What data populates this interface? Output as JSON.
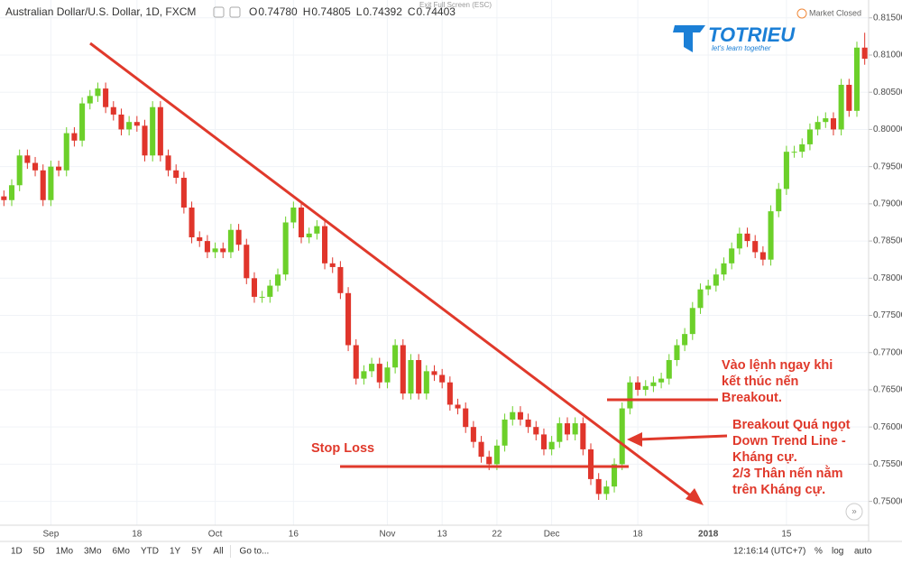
{
  "header": {
    "symbol": "Australian Dollar/U.S. Dollar, 1D, FXCM",
    "ohlc": [
      {
        "key": "O",
        "value": "0.74780"
      },
      {
        "key": "H",
        "value": "0.74805"
      },
      {
        "key": "L",
        "value": "0.74392"
      },
      {
        "key": "C",
        "value": "0.74403"
      }
    ],
    "exit_fullscreen": "Exit Full Screen (ESC)",
    "status": "Market Closed"
  },
  "logo": {
    "name": "TOTRIEU",
    "tagline": "let's learn together"
  },
  "chart_data": {
    "type": "candlestick",
    "up_color": "#6cd02a",
    "down_color": "#e0352b",
    "grid": true,
    "categories": [
      null,
      null,
      null,
      null,
      null,
      null,
      "Sep",
      null,
      null,
      null,
      null,
      null,
      null,
      null,
      null,
      null,
      null,
      "18",
      null,
      null,
      null,
      null,
      null,
      null,
      null,
      null,
      null,
      "Oct",
      null,
      null,
      null,
      null,
      null,
      null,
      null,
      null,
      null,
      "16",
      null,
      null,
      null,
      null,
      null,
      null,
      null,
      null,
      null,
      null,
      null,
      "Nov",
      null,
      null,
      null,
      null,
      null,
      null,
      "13",
      null,
      null,
      null,
      null,
      null,
      null,
      "22",
      null,
      null,
      null,
      null,
      null,
      null,
      "Dec",
      null,
      null,
      null,
      null,
      null,
      null,
      null,
      null,
      null,
      null,
      "18",
      null,
      null,
      null,
      null,
      null,
      null,
      null,
      null,
      "2018",
      null,
      null,
      null,
      null,
      null,
      null,
      null,
      null,
      null,
      "15",
      null,
      null,
      null,
      null,
      null,
      null,
      null,
      null,
      null,
      null
    ],
    "open": [
      0.791,
      0.7905,
      0.7925,
      0.7965,
      0.7955,
      0.7945,
      0.7905,
      0.795,
      0.7945,
      0.7995,
      0.7985,
      0.8035,
      0.8045,
      0.8055,
      0.803,
      0.802,
      0.8,
      0.801,
      0.8005,
      0.7965,
      0.803,
      0.7965,
      0.7945,
      0.7935,
      0.7895,
      0.7855,
      0.785,
      0.7835,
      0.784,
      0.7835,
      0.7865,
      0.7845,
      0.78,
      0.7775,
      0.7775,
      0.779,
      0.7805,
      0.7875,
      0.7895,
      0.7855,
      0.786,
      0.787,
      0.782,
      0.7815,
      0.778,
      0.771,
      0.7665,
      0.7675,
      0.7685,
      0.766,
      0.768,
      0.771,
      0.7645,
      0.769,
      0.7645,
      0.7675,
      0.767,
      0.766,
      0.763,
      0.7625,
      0.76,
      0.758,
      0.756,
      0.755,
      0.7575,
      0.761,
      0.762,
      0.761,
      0.76,
      0.759,
      0.757,
      0.758,
      0.7605,
      0.759,
      0.7605,
      0.757,
      0.753,
      0.751,
      0.752,
      0.755,
      0.7625,
      0.766,
      0.765,
      0.7655,
      0.766,
      0.7665,
      0.769,
      0.771,
      0.7725,
      0.776,
      0.7785,
      0.779,
      0.7805,
      0.782,
      0.784,
      0.786,
      0.785,
      0.7835,
      0.7825,
      0.789,
      0.792,
      0.797,
      0.797,
      0.798,
      0.8,
      0.801,
      0.8015,
      0.8,
      0.806,
      0.8025,
      0.811
    ],
    "high": [
      0.7918,
      0.7933,
      0.7973,
      0.7973,
      0.7963,
      0.7953,
      0.7958,
      0.7958,
      0.8003,
      0.8003,
      0.8043,
      0.8053,
      0.8063,
      0.8063,
      0.8038,
      0.8028,
      0.8018,
      0.8018,
      0.8013,
      0.8038,
      0.8038,
      0.7973,
      0.7953,
      0.7943,
      0.7903,
      0.7863,
      0.7858,
      0.7848,
      0.7848,
      0.7873,
      0.7873,
      0.7853,
      0.7808,
      0.7783,
      0.7798,
      0.7813,
      0.7883,
      0.7903,
      0.7903,
      0.7868,
      0.7878,
      0.7878,
      0.7828,
      0.7823,
      0.7788,
      0.7718,
      0.7683,
      0.7693,
      0.7693,
      0.7688,
      0.7718,
      0.7718,
      0.7698,
      0.7698,
      0.7683,
      0.7683,
      0.7678,
      0.7668,
      0.7638,
      0.7633,
      0.7608,
      0.7588,
      0.7568,
      0.7583,
      0.7618,
      0.7628,
      0.7628,
      0.7618,
      0.7608,
      0.7598,
      0.7588,
      0.7613,
      0.7613,
      0.7613,
      0.7613,
      0.7578,
      0.7538,
      0.7528,
      0.7558,
      0.7633,
      0.7668,
      0.7668,
      0.7663,
      0.7668,
      0.7673,
      0.7698,
      0.7718,
      0.7733,
      0.7768,
      0.7793,
      0.7798,
      0.7813,
      0.7828,
      0.7848,
      0.7868,
      0.7868,
      0.7858,
      0.7843,
      0.7898,
      0.7928,
      0.7978,
      0.7978,
      0.7988,
      0.8008,
      0.8018,
      0.8023,
      0.8023,
      0.8068,
      0.8068,
      0.8118,
      0.813
    ],
    "low": [
      0.7897,
      0.7897,
      0.7917,
      0.7947,
      0.7937,
      0.7897,
      0.7897,
      0.7937,
      0.7937,
      0.7977,
      0.7977,
      0.8027,
      0.8037,
      0.8022,
      0.8012,
      0.7992,
      0.7992,
      0.7997,
      0.7957,
      0.7957,
      0.7957,
      0.7937,
      0.7927,
      0.7887,
      0.7847,
      0.7842,
      0.7827,
      0.7827,
      0.7827,
      0.7827,
      0.7837,
      0.7792,
      0.7767,
      0.7767,
      0.7767,
      0.7782,
      0.7797,
      0.7867,
      0.7847,
      0.7847,
      0.7852,
      0.7812,
      0.7807,
      0.7772,
      0.7702,
      0.7657,
      0.7657,
      0.7667,
      0.7652,
      0.7652,
      0.7672,
      0.7637,
      0.7637,
      0.7637,
      0.7637,
      0.7662,
      0.7652,
      0.7622,
      0.7617,
      0.7592,
      0.7572,
      0.7552,
      0.7542,
      0.7542,
      0.7567,
      0.7602,
      0.7602,
      0.7592,
      0.7582,
      0.7562,
      0.7562,
      0.7572,
      0.7582,
      0.7582,
      0.7562,
      0.7522,
      0.7502,
      0.7502,
      0.7512,
      0.7542,
      0.7617,
      0.7642,
      0.7642,
      0.7647,
      0.7652,
      0.7657,
      0.7682,
      0.7702,
      0.7717,
      0.7752,
      0.7777,
      0.7782,
      0.7797,
      0.7812,
      0.7832,
      0.7842,
      0.7827,
      0.7817,
      0.7817,
      0.7882,
      0.7912,
      0.7962,
      0.7962,
      0.7972,
      0.7992,
      0.8002,
      0.7992,
      0.7992,
      0.8017,
      0.8017,
      0.8087
    ],
    "close": [
      0.7905,
      0.7925,
      0.7965,
      0.7955,
      0.7945,
      0.7905,
      0.795,
      0.7945,
      0.7995,
      0.7985,
      0.8035,
      0.8045,
      0.8055,
      0.803,
      0.802,
      0.8,
      0.801,
      0.8005,
      0.7965,
      0.803,
      0.7965,
      0.7945,
      0.7935,
      0.7895,
      0.7855,
      0.785,
      0.7835,
      0.784,
      0.7835,
      0.7865,
      0.7845,
      0.78,
      0.7775,
      0.7775,
      0.779,
      0.7805,
      0.7875,
      0.7895,
      0.7855,
      0.786,
      0.787,
      0.782,
      0.7815,
      0.778,
      0.771,
      0.7665,
      0.7675,
      0.7685,
      0.766,
      0.768,
      0.771,
      0.7645,
      0.769,
      0.7645,
      0.7675,
      0.767,
      0.766,
      0.763,
      0.7625,
      0.76,
      0.758,
      0.756,
      0.755,
      0.7575,
      0.761,
      0.762,
      0.761,
      0.76,
      0.759,
      0.757,
      0.758,
      0.7605,
      0.759,
      0.7605,
      0.757,
      0.753,
      0.751,
      0.752,
      0.755,
      0.7625,
      0.766,
      0.765,
      0.7655,
      0.766,
      0.7665,
      0.769,
      0.771,
      0.7725,
      0.776,
      0.7785,
      0.779,
      0.7805,
      0.782,
      0.784,
      0.786,
      0.785,
      0.7835,
      0.7825,
      0.789,
      0.792,
      0.797,
      0.797,
      0.798,
      0.8,
      0.801,
      0.8015,
      0.8,
      0.806,
      0.8025,
      0.811,
      0.8095
    ],
    "ylim": [
      0.7468,
      0.8174
    ],
    "yticks": [
      {
        "value": 0.75,
        "label": "0.75000"
      },
      {
        "value": 0.755,
        "label": "0.75500"
      },
      {
        "value": 0.76,
        "label": "0.76000"
      },
      {
        "value": 0.765,
        "label": "0.76500"
      },
      {
        "value": 0.77,
        "label": "0.77000"
      },
      {
        "value": 0.775,
        "label": "0.77500"
      },
      {
        "value": 0.78,
        "label": "0.78000"
      },
      {
        "value": 0.785,
        "label": "0.78500"
      },
      {
        "value": 0.79,
        "label": "0.79000"
      },
      {
        "value": 0.795,
        "label": "0.79500"
      },
      {
        "value": 0.8,
        "label": "0.80000"
      },
      {
        "value": 0.805,
        "label": "0.80500"
      },
      {
        "value": 0.81,
        "label": "0.81000"
      },
      {
        "value": 0.815,
        "label": "0.81500"
      }
    ],
    "annotations": {
      "stop_loss": "Stop Loss",
      "entry": [
        "Vào lệnh ngay khi",
        "kết thúc nến",
        "Breakout."
      ],
      "breakout": [
        "Breakout Quá ngọt",
        "Down Trend Line -",
        "Kháng cự.",
        "2/3 Thân nến nằm",
        "trên Kháng cự."
      ]
    }
  },
  "toolbar": {
    "ranges": [
      "1D",
      "5D",
      "1Mo",
      "3Mo",
      "6Mo",
      "YTD",
      "1Y",
      "5Y",
      "All"
    ],
    "goto": "Go to...",
    "clock": "12:16:14 (UTC+7)",
    "options": [
      "%",
      "log",
      "auto"
    ]
  }
}
